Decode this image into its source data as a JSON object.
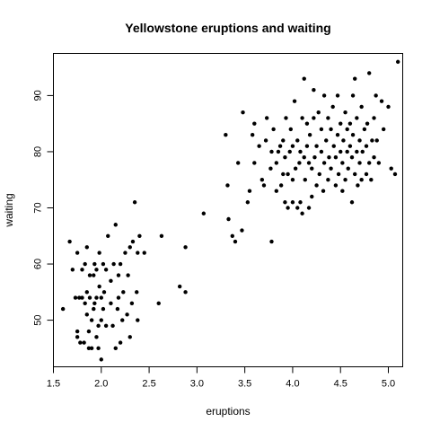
{
  "chart_data": {
    "type": "scatter",
    "title": "Yellowstone eruptions and waiting",
    "xlabel": "eruptions",
    "ylabel": "waiting",
    "xlim": [
      1.5,
      5.15
    ],
    "ylim": [
      41.7,
      97.5
    ],
    "x_ticks": [
      1.5,
      2.0,
      2.5,
      3.0,
      3.5,
      4.0,
      4.5,
      5.0
    ],
    "x_tick_labels": [
      "1.5",
      "2.0",
      "2.5",
      "3.0",
      "3.5",
      "4.0",
      "4.5",
      "5.0"
    ],
    "y_ticks": [
      50,
      60,
      70,
      80,
      90
    ],
    "y_tick_labels": [
      "50",
      "60",
      "70",
      "80",
      "90"
    ],
    "grid": false,
    "legend": "none",
    "marker_color": "#000000",
    "points": [
      [
        1.6,
        52
      ],
      [
        1.67,
        64
      ],
      [
        1.7,
        59
      ],
      [
        1.73,
        54
      ],
      [
        1.75,
        47
      ],
      [
        1.75,
        48
      ],
      [
        1.75,
        62
      ],
      [
        1.77,
        54
      ],
      [
        1.78,
        46
      ],
      [
        1.8,
        54
      ],
      [
        1.8,
        59
      ],
      [
        1.82,
        46
      ],
      [
        1.83,
        53
      ],
      [
        1.83,
        60
      ],
      [
        1.85,
        51
      ],
      [
        1.85,
        55
      ],
      [
        1.85,
        63
      ],
      [
        1.87,
        45
      ],
      [
        1.87,
        48
      ],
      [
        1.88,
        54
      ],
      [
        1.88,
        58
      ],
      [
        1.9,
        45
      ],
      [
        1.9,
        50
      ],
      [
        1.92,
        52
      ],
      [
        1.92,
        58
      ],
      [
        1.93,
        53
      ],
      [
        1.93,
        60
      ],
      [
        1.95,
        47
      ],
      [
        1.95,
        54
      ],
      [
        1.95,
        59
      ],
      [
        1.97,
        45
      ],
      [
        1.97,
        49
      ],
      [
        1.98,
        56
      ],
      [
        1.98,
        62
      ],
      [
        2.0,
        43
      ],
      [
        2.0,
        50
      ],
      [
        2.0,
        54
      ],
      [
        2.02,
        52
      ],
      [
        2.02,
        60
      ],
      [
        2.03,
        55
      ],
      [
        2.05,
        49
      ],
      [
        2.05,
        59
      ],
      [
        2.07,
        65
      ],
      [
        2.1,
        53
      ],
      [
        2.1,
        57
      ],
      [
        2.12,
        49
      ],
      [
        2.13,
        60
      ],
      [
        2.15,
        45
      ],
      [
        2.15,
        67
      ],
      [
        2.17,
        52
      ],
      [
        2.18,
        54
      ],
      [
        2.18,
        58
      ],
      [
        2.2,
        46
      ],
      [
        2.2,
        60
      ],
      [
        2.22,
        50
      ],
      [
        2.23,
        55
      ],
      [
        2.25,
        62
      ],
      [
        2.27,
        51
      ],
      [
        2.28,
        58
      ],
      [
        2.3,
        47
      ],
      [
        2.3,
        63
      ],
      [
        2.32,
        53
      ],
      [
        2.33,
        64
      ],
      [
        2.35,
        71
      ],
      [
        2.37,
        55
      ],
      [
        2.38,
        50
      ],
      [
        2.38,
        62
      ],
      [
        2.4,
        65
      ],
      [
        2.45,
        62
      ],
      [
        2.6,
        53
      ],
      [
        2.63,
        65
      ],
      [
        2.82,
        56
      ],
      [
        2.88,
        55
      ],
      [
        2.88,
        63
      ],
      [
        3.07,
        69
      ],
      [
        3.3,
        83
      ],
      [
        3.32,
        74
      ],
      [
        3.33,
        68
      ],
      [
        3.37,
        65
      ],
      [
        3.4,
        64
      ],
      [
        3.43,
        78
      ],
      [
        3.47,
        66
      ],
      [
        3.48,
        87
      ],
      [
        3.53,
        71
      ],
      [
        3.55,
        73
      ],
      [
        3.58,
        83
      ],
      [
        3.6,
        85
      ],
      [
        3.6,
        78
      ],
      [
        3.65,
        81
      ],
      [
        3.68,
        75
      ],
      [
        3.7,
        74
      ],
      [
        3.72,
        82
      ],
      [
        3.73,
        86
      ],
      [
        3.77,
        77
      ],
      [
        3.78,
        64
      ],
      [
        3.78,
        80
      ],
      [
        3.8,
        84
      ],
      [
        3.83,
        78
      ],
      [
        3.83,
        73
      ],
      [
        3.85,
        80
      ],
      [
        3.87,
        81
      ],
      [
        3.88,
        74
      ],
      [
        3.9,
        76
      ],
      [
        3.9,
        82
      ],
      [
        3.92,
        79
      ],
      [
        3.92,
        71
      ],
      [
        3.93,
        86
      ],
      [
        3.95,
        70
      ],
      [
        3.95,
        76
      ],
      [
        3.97,
        80
      ],
      [
        3.98,
        84
      ],
      [
        4.0,
        71
      ],
      [
        4.0,
        75
      ],
      [
        4.0,
        81
      ],
      [
        4.02,
        89
      ],
      [
        4.03,
        77
      ],
      [
        4.05,
        70
      ],
      [
        4.05,
        82
      ],
      [
        4.07,
        78
      ],
      [
        4.08,
        80
      ],
      [
        4.08,
        71
      ],
      [
        4.1,
        69
      ],
      [
        4.1,
        86
      ],
      [
        4.12,
        79
      ],
      [
        4.12,
        93
      ],
      [
        4.13,
        75
      ],
      [
        4.15,
        81
      ],
      [
        4.15,
        85
      ],
      [
        4.17,
        70
      ],
      [
        4.17,
        78
      ],
      [
        4.18,
        83
      ],
      [
        4.2,
        72
      ],
      [
        4.2,
        77
      ],
      [
        4.22,
        86
      ],
      [
        4.22,
        91
      ],
      [
        4.23,
        79
      ],
      [
        4.25,
        74
      ],
      [
        4.25,
        81
      ],
      [
        4.27,
        87
      ],
      [
        4.28,
        76
      ],
      [
        4.3,
        80
      ],
      [
        4.3,
        84
      ],
      [
        4.32,
        73
      ],
      [
        4.33,
        78
      ],
      [
        4.33,
        90
      ],
      [
        4.35,
        82
      ],
      [
        4.37,
        75
      ],
      [
        4.37,
        86
      ],
      [
        4.38,
        79
      ],
      [
        4.4,
        77
      ],
      [
        4.4,
        84
      ],
      [
        4.42,
        88
      ],
      [
        4.43,
        81
      ],
      [
        4.45,
        74
      ],
      [
        4.45,
        79
      ],
      [
        4.47,
        83
      ],
      [
        4.47,
        90
      ],
      [
        4.48,
        76
      ],
      [
        4.5,
        80
      ],
      [
        4.5,
        85
      ],
      [
        4.52,
        73
      ],
      [
        4.52,
        78
      ],
      [
        4.53,
        82
      ],
      [
        4.55,
        75
      ],
      [
        4.55,
        87
      ],
      [
        4.57,
        80
      ],
      [
        4.57,
        84
      ],
      [
        4.58,
        77
      ],
      [
        4.6,
        81
      ],
      [
        4.6,
        85
      ],
      [
        4.62,
        71
      ],
      [
        4.62,
        79
      ],
      [
        4.63,
        83
      ],
      [
        4.63,
        90
      ],
      [
        4.65,
        76
      ],
      [
        4.65,
        93
      ],
      [
        4.67,
        80
      ],
      [
        4.67,
        86
      ],
      [
        4.68,
        74
      ],
      [
        4.7,
        78
      ],
      [
        4.7,
        82
      ],
      [
        4.72,
        75
      ],
      [
        4.72,
        88
      ],
      [
        4.73,
        80
      ],
      [
        4.75,
        84
      ],
      [
        4.77,
        76
      ],
      [
        4.77,
        81
      ],
      [
        4.78,
        85
      ],
      [
        4.8,
        94
      ],
      [
        4.8,
        78
      ],
      [
        4.82,
        75
      ],
      [
        4.83,
        82
      ],
      [
        4.85,
        79
      ],
      [
        4.85,
        86
      ],
      [
        4.87,
        90
      ],
      [
        4.88,
        82
      ],
      [
        4.9,
        78
      ],
      [
        4.93,
        89
      ],
      [
        4.95,
        84
      ],
      [
        5.0,
        88
      ],
      [
        5.03,
        77
      ],
      [
        5.07,
        76
      ],
      [
        5.1,
        96
      ]
    ]
  }
}
